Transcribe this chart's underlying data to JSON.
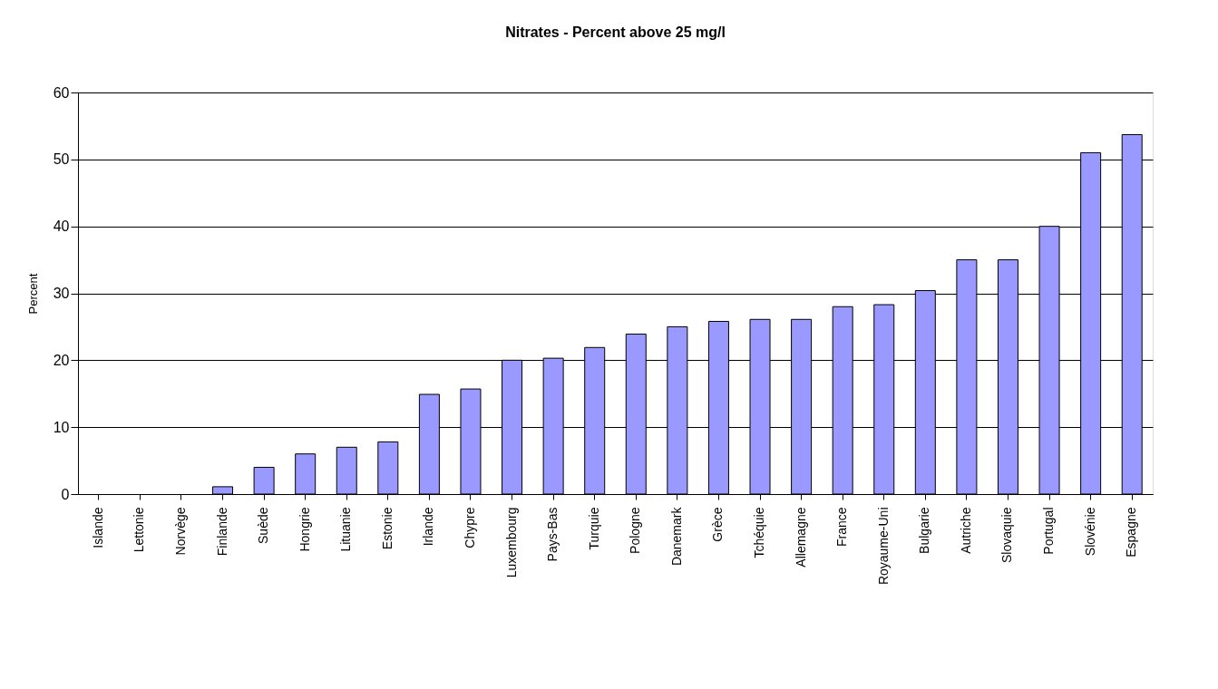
{
  "chart_data": {
    "type": "bar",
    "title": "Nitrates - Percent above 25 mg/l",
    "ylabel": "Percent",
    "categories": [
      "Islande",
      "Lettonie",
      "Norvège",
      "Finlande",
      "Suède",
      "Hongrie",
      "Lituanie",
      "Estonie",
      "Irlande",
      "Chypre",
      "Luxembourg",
      "Pays-Bas",
      "Turquie",
      "Pologne",
      "Danemark",
      "Grèce",
      "Tchéquie",
      "Allemagne",
      "France",
      "Royaume-Uni",
      "Bulgarie",
      "Autriche",
      "Slovaquie",
      "Portugal",
      "Slovénie",
      "Espagne"
    ],
    "values": [
      0,
      0,
      0,
      1.1,
      4,
      6,
      7,
      7.8,
      14.9,
      15.7,
      20,
      20.3,
      21.9,
      23.9,
      25,
      25.8,
      26.1,
      26.1,
      28,
      28.3,
      30.4,
      35,
      35,
      40,
      51,
      53.7
    ],
    "color": "#9999ff",
    "ylim": [
      0,
      60
    ],
    "yticks": [
      0,
      10,
      20,
      30,
      40,
      50,
      60
    ],
    "grid": "y"
  }
}
